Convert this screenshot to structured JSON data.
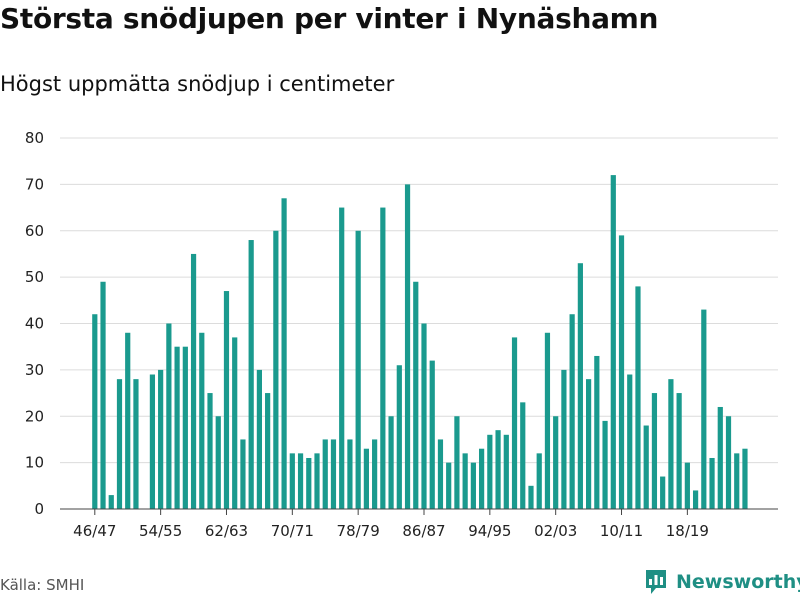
{
  "chart_data": {
    "type": "bar",
    "title": "Största snödjupen per vinter i Nynäshamn",
    "subtitle": "Högst uppmätta snödjup i centimeter",
    "xlabel": "",
    "ylabel": "",
    "ylim": [
      0,
      80
    ],
    "yticks": [
      0,
      10,
      20,
      30,
      40,
      50,
      60,
      70,
      80
    ],
    "grid": true,
    "bar_color": "#1a9a8e",
    "categories": [
      "46/47",
      "47/48",
      "48/49",
      "49/50",
      "50/51",
      "51/52",
      "52/53",
      "53/54",
      "54/55",
      "55/56",
      "56/57",
      "57/58",
      "58/59",
      "59/60",
      "60/61",
      "61/62",
      "62/63",
      "63/64",
      "64/65",
      "65/66",
      "66/67",
      "67/68",
      "68/69",
      "69/70",
      "70/71",
      "71/72",
      "72/73",
      "73/74",
      "74/75",
      "75/76",
      "76/77",
      "77/78",
      "78/79",
      "79/80",
      "80/81",
      "81/82",
      "82/83",
      "83/84",
      "84/85",
      "85/86",
      "86/87",
      "87/88",
      "88/89",
      "89/90",
      "90/91",
      "91/92",
      "92/93",
      "93/94",
      "94/95",
      "95/96",
      "96/97",
      "97/98",
      "98/99",
      "99/00",
      "00/01",
      "01/02",
      "02/03",
      "03/04",
      "04/05",
      "05/06",
      "06/07",
      "07/08",
      "08/09",
      "09/10",
      "10/11",
      "11/12",
      "12/13",
      "13/14",
      "14/15",
      "15/16",
      "16/17",
      "17/18",
      "18/19",
      "19/20",
      "20/21",
      "21/22",
      "22/23",
      "23/24",
      "24/25",
      "25/26"
    ],
    "values": [
      42,
      49,
      3,
      28,
      38,
      28,
      null,
      29,
      30,
      40,
      35,
      35,
      55,
      38,
      25,
      20,
      47,
      37,
      15,
      58,
      30,
      25,
      60,
      67,
      12,
      12,
      11,
      12,
      15,
      15,
      65,
      15,
      60,
      13,
      15,
      65,
      20,
      31,
      70,
      49,
      40,
      32,
      15,
      10,
      20,
      12,
      10,
      13,
      16,
      17,
      16,
      37,
      23,
      5,
      12,
      38,
      20,
      30,
      42,
      53,
      28,
      33,
      19,
      72,
      59,
      29,
      48,
      18,
      25,
      7,
      28,
      25,
      10,
      4,
      43,
      11,
      22,
      20,
      12,
      13
    ],
    "xtick_labels": [
      "46/47",
      "54/55",
      "62/63",
      "70/71",
      "78/79",
      "86/87",
      "94/95",
      "02/03",
      "10/11",
      "18/19"
    ],
    "source": "Källa: SMHI",
    "brand": "Newsworthy",
    "brand_color": "#1f8f84"
  }
}
